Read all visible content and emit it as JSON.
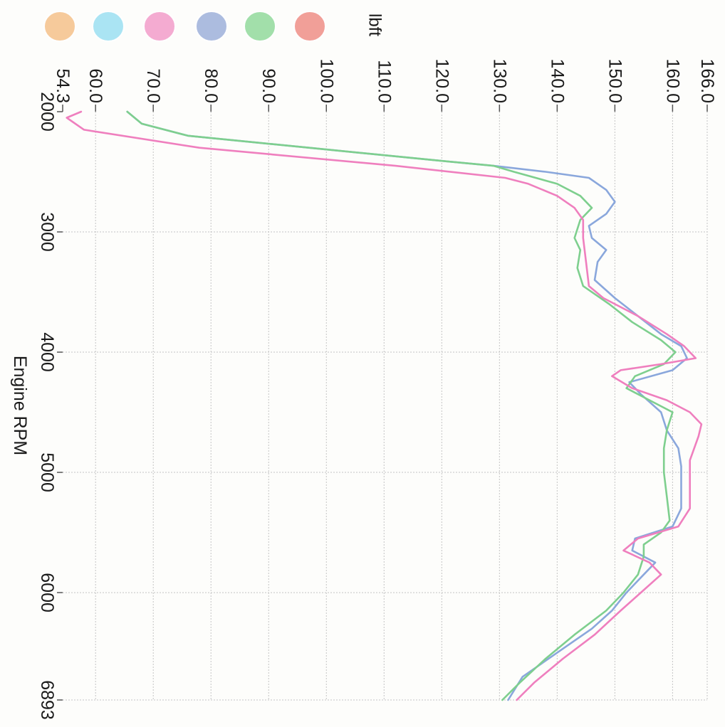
{
  "chart_data": {
    "type": "line",
    "orientation": "rotated-90-clockwise",
    "unit_label": "lbft",
    "xlabel": "Engine RPM",
    "xlim": [
      2000,
      6893
    ],
    "ylim": [
      54.3,
      166.0
    ],
    "x_ticks": [
      2000,
      3000,
      4000,
      5000,
      6000,
      6893
    ],
    "y_ticks": [
      "54.3",
      "60.0",
      "70.0",
      "80.0",
      "90.0",
      "100.0",
      "110.0",
      "120.0",
      "130.0",
      "140.0",
      "150.0",
      "160.0",
      "166.0"
    ],
    "grid": true,
    "legend_swatches": [
      "#f6c896",
      "#a6e3f3",
      "#f4a7cf",
      "#a8b9de",
      "#9edea6",
      "#f19b93"
    ],
    "series": [
      {
        "color": "#8aa7dc",
        "points": [
          [
            2000,
            65.5
          ],
          [
            2100,
            68
          ],
          [
            2200,
            76
          ],
          [
            2300,
            97
          ],
          [
            2400,
            118
          ],
          [
            2450,
            129
          ],
          [
            2500,
            138
          ],
          [
            2550,
            145.5
          ],
          [
            2650,
            148.5
          ],
          [
            2750,
            150
          ],
          [
            2850,
            148.5
          ],
          [
            2950,
            145.5
          ],
          [
            3050,
            146
          ],
          [
            3150,
            148.5
          ],
          [
            3250,
            147
          ],
          [
            3400,
            146.5
          ],
          [
            3550,
            150
          ],
          [
            3700,
            154
          ],
          [
            3850,
            158
          ],
          [
            3950,
            161.5
          ],
          [
            4050,
            162.5
          ],
          [
            4150,
            160
          ],
          [
            4250,
            152.5
          ],
          [
            4350,
            154.5
          ],
          [
            4500,
            158
          ],
          [
            4650,
            159
          ],
          [
            4800,
            161
          ],
          [
            4950,
            161.5
          ],
          [
            5150,
            161.5
          ],
          [
            5300,
            161.5
          ],
          [
            5450,
            160
          ],
          [
            5550,
            153.5
          ],
          [
            5650,
            153
          ],
          [
            5750,
            157
          ],
          [
            5850,
            155
          ],
          [
            6000,
            152
          ],
          [
            6150,
            149.5
          ],
          [
            6300,
            146
          ],
          [
            6500,
            140
          ],
          [
            6700,
            134
          ],
          [
            6893,
            131.5
          ]
        ]
      },
      {
        "color": "#7ecf8e",
        "points": [
          [
            2000,
            65.5
          ],
          [
            2100,
            68
          ],
          [
            2200,
            76
          ],
          [
            2300,
            97
          ],
          [
            2400,
            118
          ],
          [
            2450,
            129
          ],
          [
            2500,
            132.5
          ],
          [
            2600,
            140
          ],
          [
            2700,
            144
          ],
          [
            2800,
            146
          ],
          [
            2900,
            144
          ],
          [
            3050,
            143
          ],
          [
            3150,
            144
          ],
          [
            3300,
            143.5
          ],
          [
            3450,
            144.5
          ],
          [
            3600,
            149
          ],
          [
            3750,
            153
          ],
          [
            3900,
            158
          ],
          [
            4000,
            160.5
          ],
          [
            4100,
            158.5
          ],
          [
            4200,
            153.5
          ],
          [
            4300,
            152
          ],
          [
            4400,
            156
          ],
          [
            4500,
            160
          ],
          [
            4650,
            159
          ],
          [
            4800,
            158.5
          ],
          [
            5000,
            158.5
          ],
          [
            5200,
            159
          ],
          [
            5400,
            159.5
          ],
          [
            5500,
            158
          ],
          [
            5600,
            155
          ],
          [
            5700,
            155
          ],
          [
            5850,
            154
          ],
          [
            6000,
            151.5
          ],
          [
            6150,
            148.5
          ],
          [
            6350,
            143
          ],
          [
            6550,
            138
          ],
          [
            6750,
            133.5
          ],
          [
            6893,
            130.5
          ]
        ]
      },
      {
        "color": "#ef7fbe",
        "points": [
          [
            2000,
            57.5
          ],
          [
            2050,
            55
          ],
          [
            2150,
            58
          ],
          [
            2300,
            78
          ],
          [
            2450,
            112
          ],
          [
            2550,
            131
          ],
          [
            2600,
            135
          ],
          [
            2700,
            140
          ],
          [
            2800,
            143
          ],
          [
            2900,
            144.5
          ],
          [
            3050,
            144.5
          ],
          [
            3250,
            145
          ],
          [
            3450,
            145.5
          ],
          [
            3550,
            148
          ],
          [
            3700,
            154
          ],
          [
            3850,
            159
          ],
          [
            3950,
            162
          ],
          [
            4050,
            164
          ],
          [
            4100,
            158
          ],
          [
            4150,
            151
          ],
          [
            4200,
            149.5
          ],
          [
            4300,
            153
          ],
          [
            4400,
            159
          ],
          [
            4500,
            163
          ],
          [
            4600,
            165
          ],
          [
            4700,
            164.5
          ],
          [
            4900,
            163
          ],
          [
            5100,
            163
          ],
          [
            5300,
            163
          ],
          [
            5450,
            161
          ],
          [
            5550,
            154
          ],
          [
            5650,
            151.5
          ],
          [
            5750,
            156
          ],
          [
            5850,
            158
          ],
          [
            6000,
            154.5
          ],
          [
            6150,
            151
          ],
          [
            6350,
            146.5
          ],
          [
            6550,
            141
          ],
          [
            6750,
            136
          ],
          [
            6893,
            133
          ]
        ]
      }
    ]
  }
}
